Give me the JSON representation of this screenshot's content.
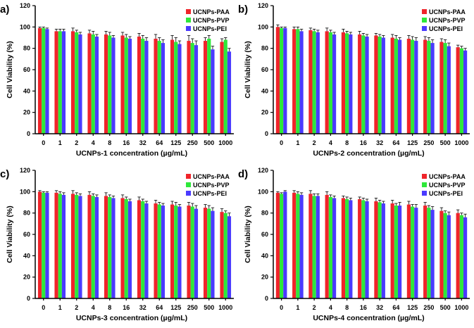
{
  "colors": {
    "PAA": "#f0242a",
    "PVP": "#2ee83a",
    "PEI": "#4a3aff",
    "axis": "#000000"
  },
  "chart_data": [
    {
      "panel": "a)",
      "type": "bar",
      "xlabel": "UCNPs-1 concentration  (µg/mL)",
      "ylabel": "Cell Viability (%)",
      "ylim": [
        0,
        120
      ],
      "yticks": [
        "0",
        "20",
        "40",
        "60",
        "80",
        "100",
        "120"
      ],
      "categories": [
        "0",
        "1",
        "2",
        "4",
        "8",
        "16",
        "32",
        "64",
        "125",
        "250",
        "500",
        "1000"
      ],
      "legend": [
        "UCNPs-PAA",
        "UCNPs-PVP",
        "UCNPs-PEI"
      ],
      "series": [
        {
          "name": "UCNPs-PAA",
          "values": [
            99,
            96,
            96,
            94,
            93,
            92,
            91,
            89,
            88,
            87,
            87,
            86
          ]
        },
        {
          "name": "UCNPs-PVP",
          "values": [
            99,
            96,
            95,
            93,
            92,
            90,
            89,
            87,
            86,
            85,
            89,
            88
          ]
        },
        {
          "name": "UCNPs-PEI",
          "values": [
            98,
            96,
            93,
            91,
            90,
            89,
            87,
            85,
            84,
            83,
            79,
            77
          ]
        }
      ],
      "errors": [
        [
          1,
          2,
          3,
          3,
          3,
          3,
          3,
          4,
          4,
          5,
          3,
          3
        ],
        [
          1,
          2,
          2,
          3,
          3,
          3,
          3,
          3,
          4,
          4,
          3,
          2
        ],
        [
          1,
          2,
          2,
          2,
          2,
          2,
          3,
          3,
          3,
          4,
          3,
          3
        ]
      ]
    },
    {
      "panel": "b)",
      "type": "bar",
      "xlabel": "UCNPs-2 concentration  (µg/mL)",
      "ylabel": "Cell Viability (%)",
      "ylim": [
        0,
        120
      ],
      "yticks": [
        "0",
        "20",
        "40",
        "60",
        "80",
        "100",
        "120"
      ],
      "categories": [
        "0",
        "1",
        "2",
        "4",
        "8",
        "16",
        "32",
        "64",
        "125",
        "250",
        "500",
        "1000"
      ],
      "legend": [
        "UCNPs-PAA",
        "UCNPs-PVP",
        "UCNPs-PEI"
      ],
      "series": [
        {
          "name": "UCNPs-PAA",
          "values": [
            100,
            98,
            97,
            96,
            95,
            93,
            92,
            90,
            89,
            88,
            86,
            81
          ]
        },
        {
          "name": "UCNPs-PVP",
          "values": [
            99,
            98,
            96,
            95,
            94,
            92,
            91,
            89,
            88,
            87,
            85,
            80
          ]
        },
        {
          "name": "UCNPs-PEI",
          "values": [
            99,
            96,
            95,
            93,
            93,
            91,
            90,
            88,
            87,
            85,
            82,
            78
          ]
        }
      ],
      "errors": [
        [
          2,
          2,
          2,
          3,
          3,
          3,
          2,
          3,
          3,
          3,
          3,
          2
        ],
        [
          1,
          2,
          2,
          2,
          2,
          2,
          2,
          3,
          3,
          3,
          3,
          2
        ],
        [
          1,
          2,
          2,
          2,
          2,
          2,
          2,
          2,
          3,
          3,
          3,
          2
        ]
      ]
    },
    {
      "panel": "c)",
      "type": "bar",
      "xlabel": "UCNPs-3 concentration  (µg/mL)",
      "ylabel": "Cell Viability (%)",
      "ylim": [
        0,
        120
      ],
      "yticks": [
        "0",
        "20",
        "40",
        "60",
        "80",
        "100",
        "120"
      ],
      "categories": [
        "0",
        "1",
        "2",
        "4",
        "8",
        "16",
        "32",
        "64",
        "125",
        "250",
        "500",
        "1000"
      ],
      "legend": [
        "UCNPs-PAA",
        "UCNPs-PVP",
        "UCNPs-PEI"
      ],
      "series": [
        {
          "name": "UCNPs-PAA",
          "values": [
            100,
            99,
            98,
            97,
            96,
            94,
            92,
            89,
            88,
            87,
            85,
            81
          ]
        },
        {
          "name": "UCNPs-PVP",
          "values": [
            99,
            98,
            97,
            96,
            95,
            93,
            91,
            88,
            87,
            86,
            84,
            80
          ]
        },
        {
          "name": "UCNPs-PEI",
          "values": [
            99,
            97,
            96,
            95,
            94,
            91,
            89,
            87,
            86,
            84,
            82,
            77
          ]
        }
      ],
      "errors": [
        [
          1,
          2,
          3,
          3,
          3,
          3,
          3,
          3,
          3,
          3,
          3,
          3
        ],
        [
          1,
          2,
          2,
          2,
          2,
          2,
          2,
          2,
          3,
          3,
          3,
          2
        ],
        [
          1,
          2,
          2,
          2,
          2,
          2,
          2,
          2,
          2,
          3,
          3,
          3
        ]
      ]
    },
    {
      "panel": "d)",
      "type": "bar",
      "xlabel": "UCNPs-4 concentration  (µg/mL)",
      "ylabel": "Cell Viability (%)",
      "ylim": [
        0,
        120
      ],
      "yticks": [
        "0",
        "20",
        "40",
        "60",
        "80",
        "100",
        "120"
      ],
      "categories": [
        "0",
        "1",
        "2",
        "4",
        "8",
        "16",
        "32",
        "64",
        "125",
        "250",
        "500",
        "1000"
      ],
      "legend": [
        "UCNPs-PAA",
        "UCNPs-PVP",
        "UCNPs-PEI"
      ],
      "series": [
        {
          "name": "UCNPs-PAA",
          "values": [
            99,
            99,
            98,
            97,
            94,
            93,
            91,
            89,
            88,
            87,
            82,
            80
          ]
        },
        {
          "name": "UCNPs-PVP",
          "values": [
            98,
            98,
            96,
            95,
            93,
            92,
            90,
            87,
            86,
            85,
            80,
            78
          ]
        },
        {
          "name": "UCNPs-PEI",
          "values": [
            100,
            97,
            96,
            94,
            92,
            91,
            89,
            87,
            85,
            83,
            78,
            76
          ]
        }
      ],
      "errors": [
        [
          1,
          2,
          3,
          3,
          2,
          2,
          3,
          3,
          3,
          3,
          3,
          3
        ],
        [
          1,
          2,
          2,
          2,
          2,
          2,
          2,
          2,
          2,
          2,
          2,
          2
        ],
        [
          1,
          2,
          2,
          2,
          2,
          2,
          2,
          3,
          3,
          3,
          3,
          3
        ]
      ]
    }
  ]
}
